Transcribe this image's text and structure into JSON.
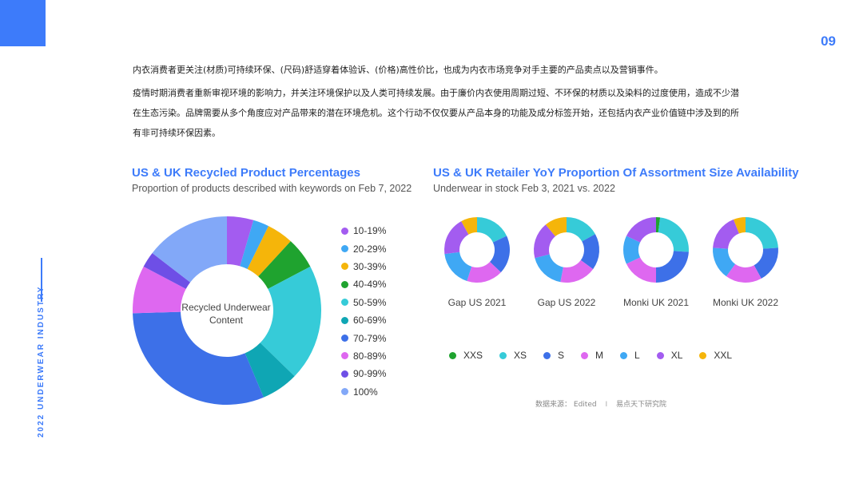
{
  "page_number": "09",
  "side_label": "2022 UNDERWEAR INDUSTRY",
  "intro": {
    "para1": "内衣消费者更关注(材质)可持续环保、(尺码)舒适穿着体验诉、(价格)高性价比，也成为内衣市场竞争对手主要的产品卖点以及营销事件。",
    "para2": "疫情时期消费者重新审视环境的影响力，并关注环境保护以及人类可持续发展。由于廉价内衣使用周期过短、不环保的材质以及染料的过度使用，造成不少潜在生态污染。品牌需要从多个角度应对产品带来的潜在环境危机。这个行动不仅仅要从产品本身的功能及成分标签开始，还包括内衣产业价值链中涉及到的所有非可持续环保因素。"
  },
  "source": {
    "label": "数据来源：",
    "edited": "Edited",
    "separator": "I",
    "org": "易点天下研究院"
  },
  "chart_data": [
    {
      "type": "pie",
      "title": "US & UK Recycled Product Percentages",
      "subtitle": "Proportion of products described with keywords on Feb 7, 2022",
      "center_label": [
        "Recycled Underwear",
        "Content"
      ],
      "legend_placement": "right",
      "categories": [
        "10-19%",
        "20-29%",
        "30-39%",
        "40-49%",
        "50-59%",
        "60-69%",
        "70-79%",
        "80-89%",
        "90-99%",
        "100%"
      ],
      "colors": [
        "#a35cf0",
        "#3fa8f4",
        "#f5b50a",
        "#1fa32f",
        "#36cbd8",
        "#0fa6b4",
        "#3d70e8",
        "#de68f0",
        "#6e4fe6",
        "#82a8f8"
      ],
      "values": [
        5,
        3,
        5,
        6,
        22,
        7,
        34,
        9,
        3,
        16
      ]
    },
    {
      "type": "pie",
      "title": "US & UK Retailer YoY Proportion Of Assortment Size Availability",
      "subtitle": "Underwear in stock Feb 3, 2021 vs. 2022",
      "legend_placement": "bottom",
      "categories": [
        "XXS",
        "XS",
        "S",
        "M",
        "L",
        "XL",
        "XXL"
      ],
      "colors": [
        "#1fa32f",
        "#36cbd8",
        "#3d70e8",
        "#de68f0",
        "#3fa8f4",
        "#a35cf0",
        "#f5b50a"
      ],
      "series": [
        {
          "name": "Gap US 2021",
          "values": [
            0,
            18,
            19,
            18,
            18,
            19,
            8
          ]
        },
        {
          "name": "Gap US 2022",
          "values": [
            0,
            17,
            18,
            18,
            18,
            18,
            11
          ]
        },
        {
          "name": "Monki UK 2021",
          "values": [
            2,
            24,
            24,
            18,
            14,
            18,
            0
          ]
        },
        {
          "name": "Monki UK 2022",
          "values": [
            0,
            24,
            18,
            18,
            16,
            18,
            6
          ]
        }
      ]
    }
  ]
}
